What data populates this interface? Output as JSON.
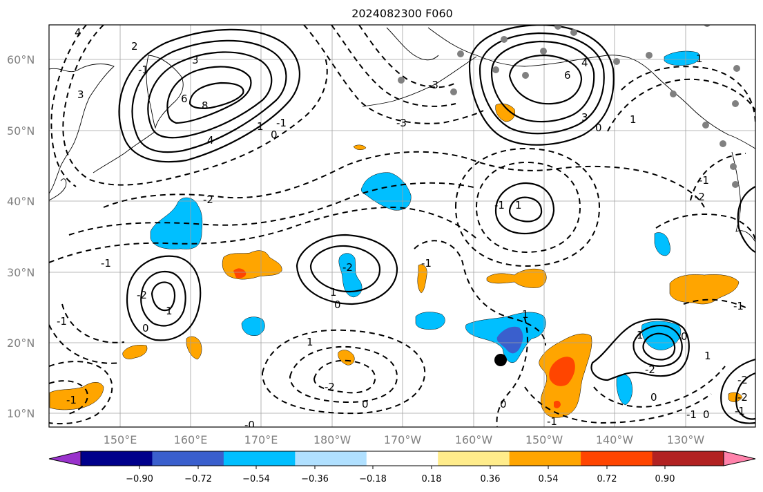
{
  "title": "2024082300 F060",
  "map": {
    "lat_labels": [
      "60°N",
      "50°N",
      "40°N",
      "30°N",
      "20°N",
      "10°N"
    ],
    "lon_labels": [
      "150°E",
      "160°E",
      "170°E",
      "180°W",
      "170°W",
      "160°W",
      "150°W",
      "140°W",
      "130°W"
    ],
    "contour_labels": [
      "4",
      "3",
      "2",
      "3",
      "6",
      "8",
      "4",
      "6",
      "4",
      "3",
      "0",
      "1",
      "-3",
      "-2",
      "-2",
      "-1",
      "-1",
      "1",
      "-2",
      "1",
      "1",
      "-2",
      "-1",
      "-1",
      "0",
      "1",
      "0",
      "1",
      "0",
      "-1",
      "-2",
      "-2",
      "0",
      "1",
      "0",
      "-1",
      "0",
      "-1",
      "-2",
      "-1",
      "0",
      "-3",
      "-2",
      "-1",
      "1",
      "-0",
      "0",
      "-1",
      "1",
      "-1",
      "1",
      "-1"
    ],
    "colors": {
      "land_outline": "#000000",
      "grid": "#a0a0a0",
      "contour": "#000000",
      "station_marker": "#808080",
      "center_marker": "#000000"
    }
  },
  "colorbar": {
    "tick_labels": [
      "−0.90",
      "−0.72",
      "−0.54",
      "−0.36",
      "−0.18",
      "0.18",
      "0.36",
      "0.54",
      "0.72",
      "0.90"
    ],
    "colors": [
      "#9932cc",
      "#00008b",
      "#3a5fcd",
      "#00bfff",
      "#b0e0ff",
      "#ffffff",
      "#ffec8b",
      "#ffa500",
      "#ff4500",
      "#b22222",
      "#ff82ab"
    ]
  }
}
